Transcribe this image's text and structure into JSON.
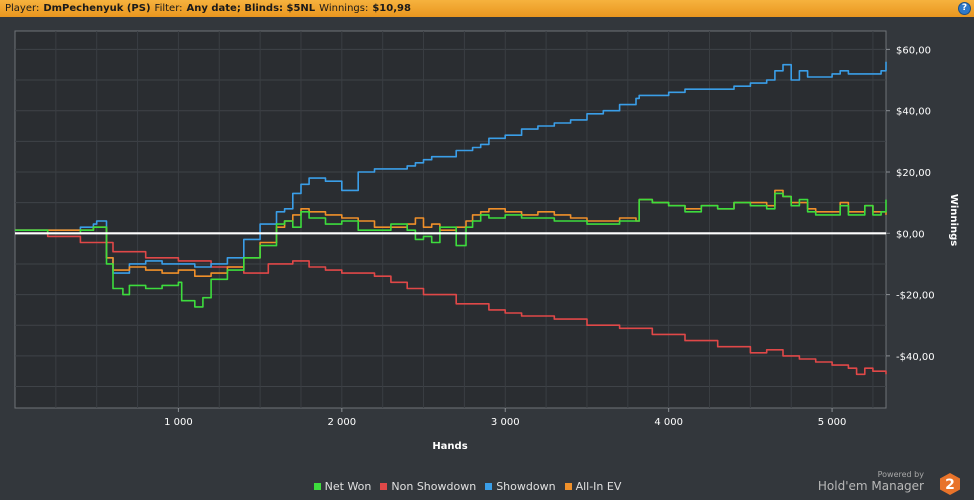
{
  "header": {
    "player_label": "Player:",
    "player_value": "DmPechenyuk (PS)",
    "filter_label": "Filter:",
    "filter_value": "Any date; Blinds: $5NL",
    "winnings_label": "Winnings:",
    "winnings_value": "$10,98",
    "help_icon": "?"
  },
  "legend": [
    {
      "label": "Net Won",
      "color": "#3ddc3d"
    },
    {
      "label": "Non Showdown",
      "color": "#e04848"
    },
    {
      "label": "Showdown",
      "color": "#3a9ee8"
    },
    {
      "label": "All-In EV",
      "color": "#f0902a"
    }
  ],
  "branding": {
    "powered_by": "Powered by",
    "name": "Hold'em Manager",
    "logo_text": "2",
    "logo_color": "#e8732a"
  },
  "chart_data": {
    "type": "line",
    "title": "",
    "xlabel": "Hands",
    "ylabel": "Winnings",
    "xlim": [
      0,
      5330
    ],
    "ylim": [
      -57,
      66
    ],
    "grid": true,
    "zero_line": true,
    "x_ticks": [
      1000,
      2000,
      3000,
      4000,
      5000
    ],
    "x_tick_labels": [
      "1 000",
      "2 000",
      "3 000",
      "4 000",
      "5 000"
    ],
    "y_ticks": [
      60,
      40,
      20,
      0,
      -20,
      -40
    ],
    "y_tick_labels": [
      "$60,00",
      "$40,00",
      "$20,00",
      "$0,00",
      "-$20,00",
      "-$40,00"
    ],
    "series": [
      {
        "name": "Net Won",
        "color": "#3ddc3d",
        "x": [
          0,
          200,
          400,
          480,
          500,
          560,
          600,
          660,
          700,
          800,
          900,
          1000,
          1020,
          1100,
          1150,
          1200,
          1300,
          1400,
          1500,
          1600,
          1650,
          1700,
          1750,
          1800,
          1900,
          2000,
          2100,
          2200,
          2300,
          2400,
          2450,
          2500,
          2550,
          2600,
          2700,
          2760,
          2800,
          2850,
          2900,
          3000,
          3100,
          3200,
          3300,
          3400,
          3500,
          3600,
          3700,
          3800,
          3820,
          3900,
          4000,
          4100,
          4200,
          4300,
          4400,
          4500,
          4600,
          4650,
          4700,
          4750,
          4800,
          4850,
          4900,
          5000,
          5050,
          5100,
          5200,
          5250,
          5300,
          5330
        ],
        "y": [
          1,
          0,
          1,
          2,
          2,
          -10,
          -18,
          -20,
          -17,
          -18,
          -17,
          -16,
          -22,
          -24,
          -21,
          -15,
          -12,
          -8,
          -4,
          3,
          4,
          2,
          7,
          5,
          3,
          4,
          1,
          1,
          3,
          1,
          -2,
          -1,
          -3,
          2,
          -4,
          2,
          4,
          6,
          5,
          6,
          5,
          5,
          4,
          4,
          3,
          3,
          4,
          4,
          11,
          10,
          9,
          7,
          9,
          8,
          10,
          9,
          8,
          13,
          12,
          9,
          11,
          7,
          6,
          6,
          9,
          6,
          9,
          6,
          7,
          11
        ]
      },
      {
        "name": "Non Showdown",
        "color": "#e04848",
        "x": [
          0,
          200,
          400,
          600,
          800,
          1000,
          1200,
          1400,
          1550,
          1700,
          1800,
          1900,
          2000,
          2200,
          2300,
          2400,
          2500,
          2700,
          2900,
          3000,
          3100,
          3300,
          3500,
          3700,
          3900,
          4100,
          4300,
          4500,
          4600,
          4700,
          4800,
          4900,
          5000,
          5100,
          5150,
          5200,
          5250,
          5300,
          5330
        ],
        "y": [
          1,
          -1,
          -3,
          -6,
          -8,
          -9,
          -11,
          -13,
          -10,
          -9,
          -11,
          -12,
          -13,
          -14,
          -16,
          -18,
          -20,
          -23,
          -25,
          -26,
          -27,
          -28,
          -30,
          -31,
          -33,
          -35,
          -37,
          -39,
          -38,
          -40,
          -41,
          -42,
          -43,
          -44,
          -46,
          -44,
          -45,
          -45,
          -46
        ]
      },
      {
        "name": "Showdown",
        "color": "#3a9ee8",
        "x": [
          0,
          200,
          400,
          480,
          500,
          560,
          600,
          700,
          800,
          900,
          1000,
          1100,
          1200,
          1300,
          1400,
          1500,
          1600,
          1650,
          1700,
          1750,
          1800,
          1900,
          2000,
          2100,
          2200,
          2300,
          2400,
          2450,
          2500,
          2550,
          2600,
          2700,
          2800,
          2850,
          2900,
          3000,
          3100,
          3200,
          3300,
          3400,
          3500,
          3600,
          3700,
          3800,
          3820,
          3900,
          4000,
          4100,
          4200,
          4300,
          4400,
          4500,
          4600,
          4650,
          4700,
          4750,
          4800,
          4850,
          4900,
          5000,
          5050,
          5100,
          5200,
          5250,
          5300,
          5330
        ],
        "y": [
          1,
          1,
          2,
          3,
          4,
          -8,
          -13,
          -10,
          -9,
          -10,
          -10,
          -11,
          -10,
          -8,
          -2,
          3,
          7,
          8,
          13,
          16,
          18,
          17,
          14,
          20,
          21,
          21,
          22,
          23,
          24,
          25,
          25,
          27,
          28,
          29,
          31,
          32,
          34,
          35,
          36,
          37,
          39,
          40,
          42,
          44,
          45,
          45,
          46,
          47,
          47,
          47,
          48,
          49,
          50,
          53,
          55,
          50,
          53,
          51,
          51,
          52,
          53,
          52,
          52,
          52,
          53,
          56
        ]
      },
      {
        "name": "All-In EV",
        "color": "#f0902a",
        "x": [
          0,
          200,
          400,
          480,
          500,
          560,
          600,
          700,
          800,
          900,
          1000,
          1100,
          1200,
          1300,
          1400,
          1500,
          1600,
          1650,
          1700,
          1750,
          1800,
          1900,
          2000,
          2100,
          2200,
          2300,
          2400,
          2450,
          2500,
          2550,
          2600,
          2700,
          2760,
          2800,
          2850,
          2900,
          3000,
          3100,
          3200,
          3300,
          3400,
          3500,
          3600,
          3700,
          3800,
          3820,
          3900,
          4000,
          4100,
          4200,
          4300,
          4400,
          4500,
          4600,
          4650,
          4700,
          4750,
          4800,
          4850,
          4900,
          5000,
          5050,
          5100,
          5200,
          5250,
          5300,
          5330
        ],
        "y": [
          1,
          1,
          1,
          2,
          2,
          -8,
          -12,
          -11,
          -12,
          -13,
          -12,
          -14,
          -13,
          -11,
          -8,
          -3,
          2,
          4,
          6,
          8,
          7,
          6,
          5,
          4,
          2,
          2,
          3,
          5,
          2,
          3,
          1,
          2,
          4,
          6,
          7,
          8,
          7,
          6,
          7,
          6,
          5,
          4,
          4,
          5,
          4,
          11,
          10,
          9,
          8,
          9,
          8,
          10,
          10,
          9,
          14,
          12,
          10,
          10,
          8,
          7,
          7,
          10,
          7,
          9,
          7,
          7,
          6
        ]
      }
    ]
  }
}
